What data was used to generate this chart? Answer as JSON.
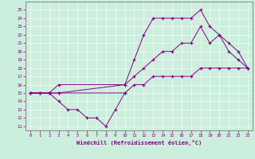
{
  "xlabel": "Windchill (Refroidissement éolien,°C)",
  "bg_color": "#cceedd",
  "line_color": "#880088",
  "grid_color": "#aaddcc",
  "spine_color": "#666666",
  "xlim": [
    -0.5,
    23.5
  ],
  "ylim": [
    10.5,
    26
  ],
  "yticks": [
    11,
    12,
    13,
    14,
    15,
    16,
    17,
    18,
    19,
    20,
    21,
    22,
    23,
    24,
    25
  ],
  "xticks": [
    0,
    1,
    2,
    3,
    4,
    5,
    6,
    7,
    8,
    9,
    10,
    11,
    12,
    13,
    14,
    15,
    16,
    17,
    18,
    19,
    20,
    21,
    22,
    23
  ],
  "series": [
    {
      "x": [
        0,
        1,
        2,
        3,
        10,
        11,
        12,
        13,
        14,
        15,
        16,
        17,
        18,
        19,
        20,
        21,
        22,
        23
      ],
      "y": [
        15,
        15,
        15,
        15,
        16,
        19,
        22,
        24,
        24,
        24,
        24,
        24,
        25,
        23,
        22,
        20,
        19,
        18
      ]
    },
    {
      "x": [
        0,
        1,
        2,
        3,
        10,
        11,
        12,
        13,
        14,
        15,
        16,
        17,
        18,
        19,
        20,
        21,
        22,
        23
      ],
      "y": [
        15,
        15,
        15,
        16,
        16,
        17,
        18,
        19,
        20,
        20,
        21,
        21,
        23,
        21,
        22,
        21,
        20,
        18
      ]
    },
    {
      "x": [
        0,
        1,
        2,
        3,
        10,
        11,
        12,
        13,
        14,
        15,
        16,
        17,
        18,
        19,
        20,
        21,
        22,
        23
      ],
      "y": [
        15,
        15,
        15,
        15,
        15,
        16,
        16,
        17,
        17,
        17,
        17,
        17,
        18,
        18,
        18,
        18,
        18,
        18
      ]
    },
    {
      "x": [
        0,
        1,
        2,
        3,
        4,
        5,
        6,
        7,
        8,
        9,
        10
      ],
      "y": [
        15,
        15,
        15,
        14,
        13,
        13,
        12,
        12,
        11,
        13,
        15
      ]
    }
  ]
}
